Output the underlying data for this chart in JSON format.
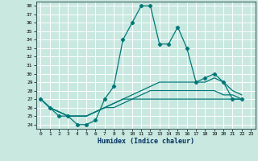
{
  "title": "",
  "xlabel": "Humidex (Indice chaleur)",
  "bg_color": "#c8e8e0",
  "grid_color": "#ffffff",
  "line_color": "#007878",
  "xlim": [
    -0.5,
    23.5
  ],
  "ylim": [
    23.5,
    38.5
  ],
  "xticks": [
    0,
    1,
    2,
    3,
    4,
    5,
    6,
    7,
    8,
    9,
    10,
    11,
    12,
    13,
    14,
    15,
    16,
    17,
    18,
    19,
    20,
    21,
    22,
    23
  ],
  "yticks": [
    24,
    25,
    26,
    27,
    28,
    29,
    30,
    31,
    32,
    33,
    34,
    35,
    36,
    37,
    38
  ],
  "series": [
    {
      "y": [
        27,
        26,
        25,
        25,
        24,
        24,
        24.5,
        27,
        28.5,
        34,
        36,
        38,
        38,
        33.5,
        33.5,
        35.5,
        33,
        29,
        29.5,
        30,
        29,
        27,
        27
      ],
      "marker": true
    },
    {
      "y": [
        27,
        26,
        25.5,
        25,
        25,
        25,
        25.5,
        26,
        26.5,
        27,
        27.5,
        28,
        28.5,
        29,
        29,
        29,
        29,
        29,
        29,
        29.5,
        29,
        28,
        27.5
      ],
      "marker": false
    },
    {
      "y": [
        27,
        26,
        25.5,
        25,
        25,
        25,
        25.5,
        26,
        26.5,
        27,
        27,
        27.5,
        28,
        28,
        28,
        28,
        28,
        28,
        28,
        28,
        27.5,
        27.5,
        27
      ],
      "marker": false
    },
    {
      "y": [
        27,
        26,
        25.5,
        25,
        25,
        25,
        25.5,
        26,
        26,
        26.5,
        27,
        27,
        27,
        27,
        27,
        27,
        27,
        27,
        27,
        27,
        27,
        27,
        27
      ],
      "marker": false
    }
  ]
}
